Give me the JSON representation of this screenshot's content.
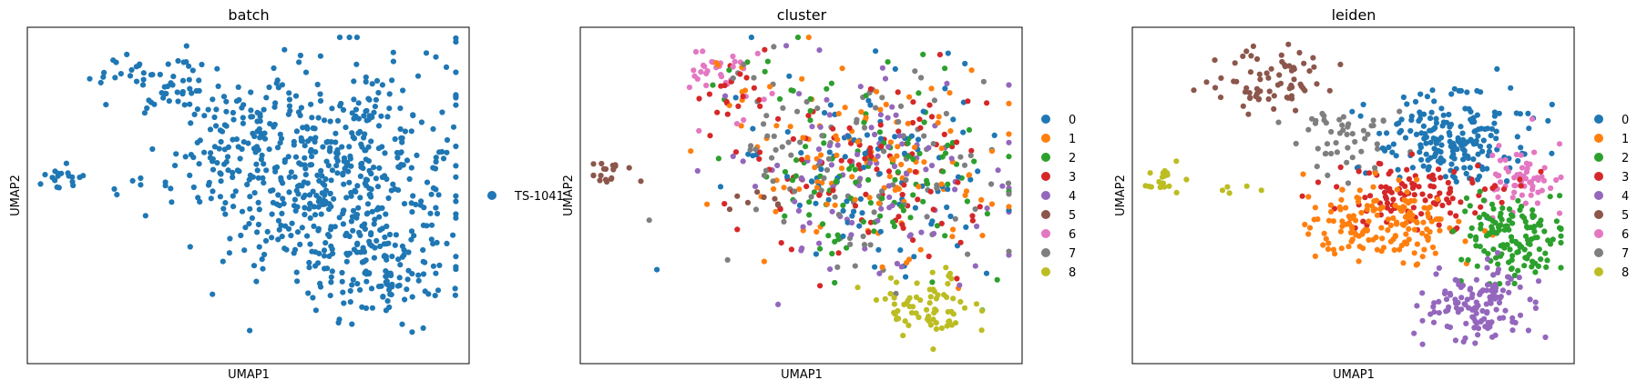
{
  "figure": {
    "panels": [
      {
        "title": "batch",
        "xlabel": "UMAP1",
        "ylabel": "UMAP2",
        "legend": {
          "placement": "right-outside",
          "items": [
            {
              "label": "TS-1041",
              "color": "#1f77b4"
            }
          ]
        }
      },
      {
        "title": "cluster",
        "xlabel": "UMAP1",
        "ylabel": "UMAP2",
        "legend": {
          "placement": "right-outside",
          "items": [
            {
              "label": "0",
              "color": "#1f77b4"
            },
            {
              "label": "1",
              "color": "#ff7f0e"
            },
            {
              "label": "2",
              "color": "#2ca02c"
            },
            {
              "label": "3",
              "color": "#d62728"
            },
            {
              "label": "4",
              "color": "#9467bd"
            },
            {
              "label": "5",
              "color": "#8c564b"
            },
            {
              "label": "6",
              "color": "#e377c2"
            },
            {
              "label": "7",
              "color": "#7f7f7f"
            },
            {
              "label": "8",
              "color": "#bcbd22"
            }
          ]
        }
      },
      {
        "title": "leiden",
        "xlabel": "UMAP1",
        "ylabel": "UMAP2",
        "legend": {
          "placement": "right-outside",
          "items": [
            {
              "label": "0",
              "color": "#1f77b4"
            },
            {
              "label": "1",
              "color": "#ff7f0e"
            },
            {
              "label": "2",
              "color": "#2ca02c"
            },
            {
              "label": "3",
              "color": "#d62728"
            },
            {
              "label": "4",
              "color": "#9467bd"
            },
            {
              "label": "5",
              "color": "#8c564b"
            },
            {
              "label": "6",
              "color": "#e377c2"
            },
            {
              "label": "7",
              "color": "#7f7f7f"
            },
            {
              "label": "8",
              "color": "#bcbd22"
            }
          ]
        }
      }
    ]
  },
  "chart_data": [
    {
      "type": "scatter",
      "title": "batch",
      "xlabel": "UMAP1",
      "ylabel": "UMAP2",
      "ticks_visible": false,
      "grid": false,
      "legend_placement": "right-outside",
      "series": [
        {
          "name": "TS-1041",
          "color": "#1f77b4"
        }
      ],
      "regions": [
        {
          "series": "TS-1041",
          "center": [
            0.3,
            0.84
          ],
          "spread": [
            0.07,
            0.05
          ],
          "n": 60
        },
        {
          "series": "TS-1041",
          "center": [
            0.07,
            0.55
          ],
          "spread": [
            0.03,
            0.02
          ],
          "n": 18
        },
        {
          "series": "TS-1041",
          "center": [
            0.22,
            0.52
          ],
          "spread": [
            0.04,
            0.015
          ],
          "n": 8
        },
        {
          "series": "TS-1041",
          "center": [
            0.45,
            0.66
          ],
          "spread": [
            0.07,
            0.06
          ],
          "n": 60
        },
        {
          "series": "TS-1041",
          "center": [
            0.68,
            0.58
          ],
          "spread": [
            0.15,
            0.16
          ],
          "n": 520
        },
        {
          "series": "TS-1041",
          "center": [
            0.8,
            0.28
          ],
          "spread": [
            0.07,
            0.08
          ],
          "n": 130
        }
      ]
    },
    {
      "type": "scatter",
      "title": "cluster",
      "xlabel": "UMAP1",
      "ylabel": "UMAP2",
      "ticks_visible": false,
      "grid": false,
      "legend_placement": "right-outside",
      "series": [
        {
          "name": "0",
          "color": "#1f77b4"
        },
        {
          "name": "1",
          "color": "#ff7f0e"
        },
        {
          "name": "2",
          "color": "#2ca02c"
        },
        {
          "name": "3",
          "color": "#d62728"
        },
        {
          "name": "4",
          "color": "#9467bd"
        },
        {
          "name": "5",
          "color": "#8c564b"
        },
        {
          "name": "6",
          "color": "#e377c2"
        },
        {
          "name": "7",
          "color": "#7f7f7f"
        },
        {
          "name": "8",
          "color": "#bcbd22"
        }
      ],
      "regions": [
        {
          "series": "mixed",
          "mix": [
            "0",
            "1",
            "2",
            "3",
            "4",
            "7"
          ],
          "center": [
            0.66,
            0.57
          ],
          "spread": [
            0.15,
            0.15
          ],
          "n": 600
        },
        {
          "series": "8",
          "center": [
            0.78,
            0.17
          ],
          "spread": [
            0.06,
            0.05
          ],
          "n": 70
        },
        {
          "series": "6",
          "center": [
            0.3,
            0.86
          ],
          "spread": [
            0.04,
            0.03
          ],
          "n": 25
        },
        {
          "series": "mixed",
          "mix": [
            "1",
            "2",
            "3",
            "6",
            "7"
          ],
          "center": [
            0.38,
            0.82
          ],
          "spread": [
            0.06,
            0.06
          ],
          "n": 50
        },
        {
          "series": "5",
          "center": [
            0.07,
            0.56
          ],
          "spread": [
            0.03,
            0.02
          ],
          "n": 18
        },
        {
          "series": "5",
          "center": [
            0.4,
            0.48
          ],
          "spread": [
            0.04,
            0.02
          ],
          "n": 8
        },
        {
          "series": "7",
          "center": [
            0.43,
            0.62
          ],
          "spread": [
            0.03,
            0.05
          ],
          "n": 15
        }
      ]
    },
    {
      "type": "scatter",
      "title": "leiden",
      "xlabel": "UMAP1",
      "ylabel": "UMAP2",
      "ticks_visible": false,
      "grid": false,
      "legend_placement": "right-outside",
      "series": [
        {
          "name": "0",
          "color": "#1f77b4"
        },
        {
          "name": "1",
          "color": "#ff7f0e"
        },
        {
          "name": "2",
          "color": "#2ca02c"
        },
        {
          "name": "3",
          "color": "#d62728"
        },
        {
          "name": "4",
          "color": "#9467bd"
        },
        {
          "name": "5",
          "color": "#8c564b"
        },
        {
          "name": "6",
          "color": "#e377c2"
        },
        {
          "name": "7",
          "color": "#7f7f7f"
        },
        {
          "name": "8",
          "color": "#bcbd22"
        }
      ],
      "regions": [
        {
          "series": "5",
          "center": [
            0.31,
            0.85
          ],
          "spread": [
            0.06,
            0.05
          ],
          "n": 70
        },
        {
          "series": "7",
          "center": [
            0.48,
            0.67
          ],
          "spread": [
            0.06,
            0.05
          ],
          "n": 50
        },
        {
          "series": "0",
          "center": [
            0.72,
            0.67
          ],
          "spread": [
            0.09,
            0.07
          ],
          "n": 200
        },
        {
          "series": "6",
          "center": [
            0.88,
            0.55
          ],
          "spread": [
            0.04,
            0.06
          ],
          "n": 60
        },
        {
          "series": "3",
          "center": [
            0.63,
            0.5
          ],
          "spread": [
            0.1,
            0.05
          ],
          "n": 110
        },
        {
          "series": "1",
          "center": [
            0.58,
            0.42
          ],
          "spread": [
            0.09,
            0.06
          ],
          "n": 160
        },
        {
          "series": "2",
          "center": [
            0.86,
            0.38
          ],
          "spread": [
            0.06,
            0.06
          ],
          "n": 140
        },
        {
          "series": "4",
          "center": [
            0.78,
            0.18
          ],
          "spread": [
            0.07,
            0.06
          ],
          "n": 130
        },
        {
          "series": "8",
          "center": [
            0.07,
            0.55
          ],
          "spread": [
            0.03,
            0.02
          ],
          "n": 18
        },
        {
          "series": "8",
          "center": [
            0.23,
            0.5
          ],
          "spread": [
            0.03,
            0.015
          ],
          "n": 5
        }
      ]
    }
  ]
}
